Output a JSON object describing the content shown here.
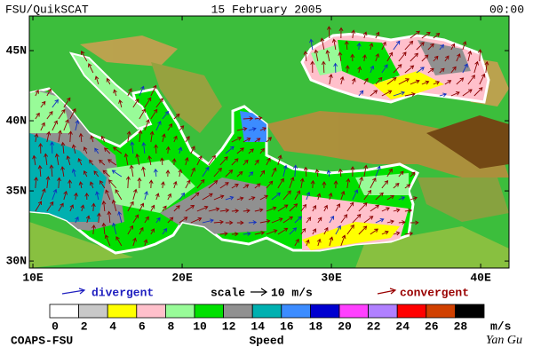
{
  "header": {
    "title": "FSU/QuikSCAT",
    "date": "15 February 2005",
    "time": "00:00"
  },
  "map": {
    "lon_range": [
      9.76,
      41.9
    ],
    "lat_range": [
      29.5,
      47.47
    ],
    "lon_ticks": [
      {
        "value": 10,
        "label": "10E"
      },
      {
        "value": 20,
        "label": "20E"
      },
      {
        "value": 30,
        "label": "30E"
      },
      {
        "value": 40,
        "label": "40E"
      }
    ],
    "lat_ticks": [
      {
        "value": 45,
        "label": "45N"
      },
      {
        "value": 40,
        "label": "40N"
      },
      {
        "value": 35,
        "label": "35N"
      },
      {
        "value": 30,
        "label": "30N"
      }
    ]
  },
  "legend": {
    "divergent": "divergent",
    "scale": "scale",
    "scale_value": "10 m/s",
    "convergent": "convergent"
  },
  "colorbar": {
    "label": "Speed",
    "unit": "m/s",
    "ticks": [
      0,
      2,
      4,
      6,
      8,
      10,
      12,
      14,
      16,
      18,
      20,
      22,
      24,
      26,
      28
    ],
    "colors": [
      "#ffffff",
      "#c8c8c8",
      "#ffff00",
      "#ffc0cb",
      "#98fb98",
      "#00e000",
      "#909090",
      "#00b0b0",
      "#3c8cff",
      "#0000d0",
      "#ff40ff",
      "#b080ff",
      "#ff0000",
      "#d04000",
      "#000000"
    ]
  },
  "footer": {
    "left": "COAPS-FSU",
    "right": "Yan Gu"
  }
}
